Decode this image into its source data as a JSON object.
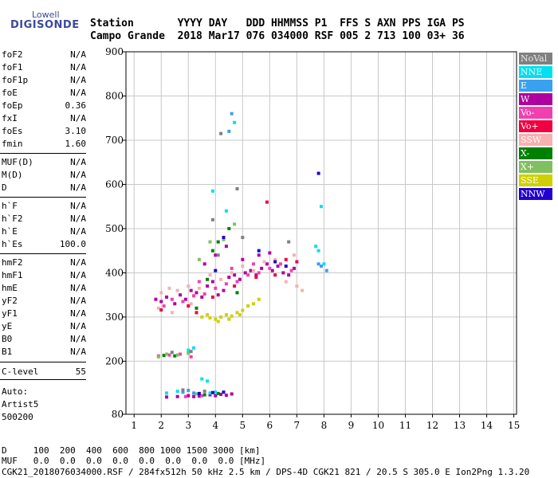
{
  "logo": {
    "top": "Lowell",
    "bottom": "DIGISONDE"
  },
  "header": {
    "line1": "Station       YYYY DAY   DDD HHMMSS P1  FFS S AXN PPS IGA PS",
    "line2": "Campo Grande  2018 Mar17 076 034000 RSF 005 2 713 100 03+ 36"
  },
  "params": [
    {
      "name": "foF2",
      "value": "N/A"
    },
    {
      "name": "foF1",
      "value": "N/A"
    },
    {
      "name": "foF1p",
      "value": "N/A"
    },
    {
      "name": "foE",
      "value": "N/A"
    },
    {
      "name": "foEp",
      "value": "0.36"
    },
    {
      "name": "fxI",
      "value": "N/A"
    },
    {
      "name": "foEs",
      "value": "3.10"
    },
    {
      "name": "fmin",
      "value": "1.60"
    },
    {
      "name": "MUF(D)",
      "value": "N/A"
    },
    {
      "name": "M(D)",
      "value": "N/A"
    },
    {
      "name": "D",
      "value": "N/A"
    },
    {
      "name": "h`F",
      "value": "N/A"
    },
    {
      "name": "h`F2",
      "value": "N/A"
    },
    {
      "name": "h`E",
      "value": "N/A"
    },
    {
      "name": "h`Es",
      "value": "100.0"
    },
    {
      "name": "hmF2",
      "value": "N/A"
    },
    {
      "name": "hmF1",
      "value": "N/A"
    },
    {
      "name": "hmE",
      "value": "N/A"
    },
    {
      "name": "yF2",
      "value": "N/A"
    },
    {
      "name": "yF1",
      "value": "N/A"
    },
    {
      "name": "yE",
      "value": "N/A"
    },
    {
      "name": "B0",
      "value": "N/A"
    },
    {
      "name": "B1",
      "value": "N/A"
    },
    {
      "name": "C-level",
      "value": "55"
    }
  ],
  "auto": {
    "line1": "Auto:",
    "line2": "Artist5",
    "line3": "500200"
  },
  "legend": [
    {
      "label": "NoVal",
      "color": "#808080"
    },
    {
      "label": "NNE",
      "color": "#00e0f0"
    },
    {
      "label": "E",
      "color": "#3aa0f0"
    },
    {
      "label": "W",
      "color": "#b000a0"
    },
    {
      "label": "Vo-",
      "color": "#f040b0"
    },
    {
      "label": "Vo+",
      "color": "#f00040"
    },
    {
      "label": "SSW",
      "color": "#f8b0b0"
    },
    {
      "label": "X-",
      "color": "#008000"
    },
    {
      "label": "X+",
      "color": "#80c060"
    },
    {
      "label": "SSE",
      "color": "#d0d000"
    },
    {
      "label": "NNW",
      "color": "#2000d0"
    }
  ],
  "footer": {
    "d_row": "D     100  200  400  600  800 1000 1500 3000 [km]",
    "muf_row": "MUF   0.0  0.0  0.0  0.0  0.0  0.0  0.0  0.0 [MHz]",
    "file_line": "CGK21_2018076034000.RSF / 284fx512h 50 kHz 2.5 km / DPS-4D CGK21 821 / 20.5 S 305.0 E Ion2Png 1.3.20"
  },
  "chart_data": {
    "type": "scatter",
    "xlim": [
      0.7,
      15.1
    ],
    "ylim": [
      80,
      900
    ],
    "x_ticks": [
      1,
      2,
      3,
      4,
      5,
      6,
      7,
      8,
      9,
      10,
      11,
      12,
      13,
      14,
      15
    ],
    "y_ticks": [
      80,
      200,
      300,
      400,
      500,
      600,
      700,
      800,
      900
    ],
    "grid": true,
    "legend_position": "right",
    "series": [
      {
        "color": "#b000a0",
        "points": [
          [
            1.8,
            340
          ],
          [
            2.0,
            335
          ],
          [
            2.2,
            345
          ],
          [
            2.5,
            330
          ],
          [
            2.7,
            350
          ],
          [
            2.9,
            340
          ],
          [
            3.1,
            360
          ],
          [
            3.3,
            355
          ],
          [
            3.5,
            345
          ],
          [
            3.7,
            370
          ],
          [
            3.9,
            380
          ],
          [
            4.1,
            350
          ],
          [
            4.3,
            360
          ],
          [
            4.5,
            390
          ],
          [
            4.7,
            395
          ],
          [
            4.9,
            385
          ],
          [
            5.1,
            400
          ],
          [
            5.3,
            405
          ],
          [
            5.5,
            395
          ],
          [
            5.7,
            410
          ],
          [
            5.9,
            420
          ],
          [
            6.1,
            405
          ],
          [
            6.3,
            415
          ],
          [
            6.5,
            400
          ],
          [
            6.7,
            395
          ],
          [
            6.9,
            410
          ],
          [
            4.0,
            440
          ],
          [
            4.4,
            460
          ],
          [
            3.6,
            420
          ],
          [
            5.0,
            430
          ],
          [
            5.6,
            440
          ],
          [
            6.0,
            445
          ],
          [
            4.2,
            125
          ],
          [
            4.4,
            123
          ],
          [
            3.8,
            124
          ],
          [
            3.4,
            121
          ],
          [
            3.0,
            122
          ],
          [
            2.6,
            120
          ],
          [
            2.2,
            119
          ],
          [
            4.6,
            126
          ],
          [
            3.2,
            120
          ],
          [
            4.0,
            122
          ]
        ]
      },
      {
        "color": "#f040b0",
        "points": [
          [
            2.1,
            325
          ],
          [
            2.4,
            340
          ],
          [
            2.8,
            335
          ],
          [
            3.2,
            348
          ],
          [
            3.6,
            352
          ],
          [
            4.0,
            365
          ],
          [
            4.4,
            375
          ],
          [
            4.8,
            380
          ],
          [
            5.2,
            395
          ],
          [
            5.6,
            400
          ],
          [
            6.0,
            410
          ],
          [
            6.4,
            420
          ],
          [
            6.8,
            405
          ],
          [
            3.4,
            380
          ],
          [
            4.6,
            410
          ],
          [
            5.4,
            420
          ],
          [
            1.9,
            212
          ],
          [
            2.3,
            214
          ],
          [
            2.7,
            216
          ],
          [
            3.1,
            210
          ],
          [
            2.9,
            120
          ],
          [
            3.5,
            122
          ]
        ]
      },
      {
        "color": "#f8b0b0",
        "points": [
          [
            2.0,
            355
          ],
          [
            2.3,
            365
          ],
          [
            2.6,
            360
          ],
          [
            3.0,
            370
          ],
          [
            3.4,
            365
          ],
          [
            3.8,
            395
          ],
          [
            4.2,
            385
          ],
          [
            4.6,
            400
          ],
          [
            5.0,
            415
          ],
          [
            5.4,
            405
          ],
          [
            5.8,
            425
          ],
          [
            6.2,
            430
          ],
          [
            6.6,
            380
          ],
          [
            7.0,
            370
          ],
          [
            7.2,
            360
          ],
          [
            6.9,
            440
          ],
          [
            1.9,
            320
          ],
          [
            2.4,
            310
          ],
          [
            3.1,
            330
          ]
        ]
      },
      {
        "color": "#d0d000",
        "points": [
          [
            3.5,
            300
          ],
          [
            3.8,
            298
          ],
          [
            4.0,
            295
          ],
          [
            4.2,
            300
          ],
          [
            4.4,
            305
          ],
          [
            4.6,
            302
          ],
          [
            4.8,
            310
          ],
          [
            5.0,
            315
          ],
          [
            5.2,
            325
          ],
          [
            5.4,
            330
          ],
          [
            5.6,
            340
          ],
          [
            3.7,
            305
          ],
          [
            4.1,
            290
          ],
          [
            4.5,
            295
          ],
          [
            4.9,
            305
          ]
        ]
      },
      {
        "color": "#f00040",
        "points": [
          [
            3.0,
            325
          ],
          [
            3.9,
            345
          ],
          [
            4.7,
            370
          ],
          [
            5.5,
            390
          ],
          [
            6.2,
            395
          ],
          [
            6.6,
            430
          ],
          [
            7.0,
            425
          ],
          [
            5.9,
            560
          ],
          [
            2.0,
            316
          ],
          [
            3.3,
            310
          ]
        ]
      },
      {
        "color": "#008000",
        "points": [
          [
            3.3,
            320
          ],
          [
            3.9,
            450
          ],
          [
            4.1,
            470
          ],
          [
            4.5,
            500
          ],
          [
            3.7,
            385
          ],
          [
            4.8,
            355
          ],
          [
            2.1,
            213
          ],
          [
            2.5,
            212
          ],
          [
            3.6,
            124
          ],
          [
            4.1,
            127
          ]
        ]
      },
      {
        "color": "#80c060",
        "points": [
          [
            3.4,
            430
          ],
          [
            3.8,
            470
          ],
          [
            4.3,
            475
          ],
          [
            4.7,
            510
          ],
          [
            2.2,
            216
          ],
          [
            2.6,
            214
          ],
          [
            3.0,
            218
          ],
          [
            1.9,
            210
          ],
          [
            3.3,
            126
          ]
        ]
      },
      {
        "color": "#00e0f0",
        "points": [
          [
            4.4,
            540
          ],
          [
            3.9,
            585
          ],
          [
            4.7,
            740
          ],
          [
            7.8,
            450
          ],
          [
            7.9,
            550
          ],
          [
            8.0,
            420
          ],
          [
            7.7,
            460
          ],
          [
            3.2,
            230
          ],
          [
            3.0,
            225
          ],
          [
            2.2,
            128
          ],
          [
            2.6,
            132
          ],
          [
            3.8,
            128
          ],
          [
            3.5,
            160
          ],
          [
            3.7,
            155
          ],
          [
            4.0,
            130
          ]
        ]
      },
      {
        "color": "#3aa0f0",
        "points": [
          [
            4.5,
            720
          ],
          [
            4.6,
            760
          ],
          [
            7.8,
            420
          ],
          [
            8.1,
            405
          ],
          [
            7.9,
            415
          ],
          [
            2.8,
            130
          ],
          [
            3.2,
            128
          ],
          [
            3.0,
            134
          ]
        ]
      },
      {
        "color": "#2000d0",
        "points": [
          [
            7.8,
            625
          ],
          [
            4.0,
            405
          ],
          [
            4.3,
            480
          ],
          [
            5.6,
            450
          ],
          [
            6.2,
            425
          ],
          [
            6.6,
            415
          ],
          [
            3.4,
            127
          ],
          [
            3.9,
            129
          ],
          [
            4.3,
            130
          ]
        ]
      },
      {
        "color": "#808080",
        "points": [
          [
            4.1,
            440
          ],
          [
            5.0,
            480
          ],
          [
            3.9,
            520
          ],
          [
            6.7,
            470
          ],
          [
            4.8,
            590
          ],
          [
            2.4,
            220
          ],
          [
            3.1,
            222
          ],
          [
            2.8,
            135
          ],
          [
            3.6,
            132
          ],
          [
            4.2,
            715
          ]
        ]
      }
    ]
  }
}
